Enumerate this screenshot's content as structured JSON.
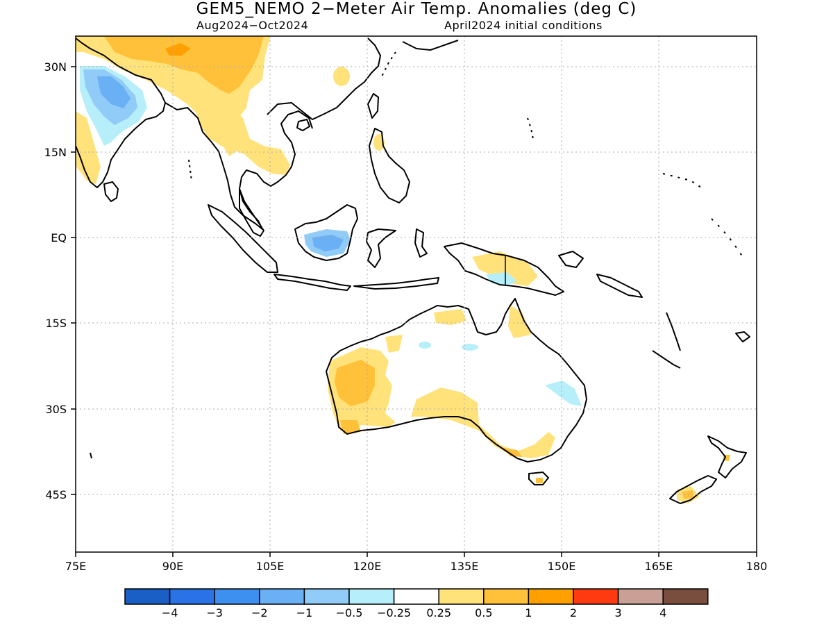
{
  "title": "GEM5_NEMO 2−Meter Air Temp. Anomalies (deg C)",
  "subtitle_left": "Aug2024−Oct2024",
  "subtitle_right": "April2024 initial conditions",
  "map": {
    "lon_range": [
      75,
      180
    ],
    "lat_range": [
      -49,
      35
    ],
    "x_ticks": [
      {
        "lon": 75,
        "label": "75E"
      },
      {
        "lon": 90,
        "label": "90E"
      },
      {
        "lon": 105,
        "label": "105E"
      },
      {
        "lon": 120,
        "label": "120E"
      },
      {
        "lon": 135,
        "label": "135E"
      },
      {
        "lon": 150,
        "label": "150E"
      },
      {
        "lon": 165,
        "label": "165E"
      },
      {
        "lon": 180,
        "label": "180"
      }
    ],
    "y_ticks": [
      {
        "lat": 30,
        "label": "30N"
      },
      {
        "lat": 15,
        "label": "15N"
      },
      {
        "lat": 0,
        "label": "EQ"
      },
      {
        "lat": -15,
        "label": "15S"
      },
      {
        "lat": -30,
        "label": "30S"
      },
      {
        "lat": -45,
        "label": "45S"
      }
    ],
    "grid": "dotted"
  },
  "colorbar": {
    "colors": [
      "#1a5fc6",
      "#2a73e6",
      "#3d90f0",
      "#6ab0f5",
      "#91cbf7",
      "#b6effa",
      "#ffffff",
      "#ffe27a",
      "#ffc13a",
      "#ffa000",
      "#ff3a10",
      "#c8a095",
      "#7a4e3f"
    ],
    "labels": [
      "−4",
      "−3",
      "−2",
      "−1",
      "−0.5",
      "−0.25",
      "0.25",
      "0.5",
      "1",
      "2",
      "3",
      "4"
    ]
  }
}
